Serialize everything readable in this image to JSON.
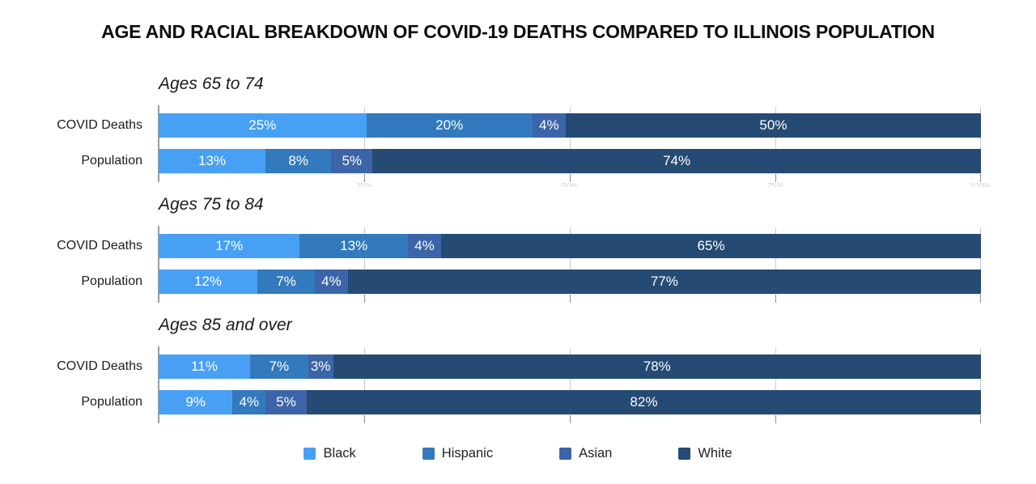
{
  "title": "AGE AND RACIAL BREAKDOWN OF COVID-19 DEATHS COMPARED TO ILLINOIS POPULATION",
  "colors": {
    "black": "#47A0F4",
    "hispanic": "#3379BD",
    "asian": "#3C64A8",
    "white": "#254A73"
  },
  "axis": {
    "tick_labels": [
      "25%",
      "50%",
      "75%",
      "100%"
    ],
    "tick_positions": [
      25,
      50,
      75,
      100
    ]
  },
  "legend": {
    "items": [
      {
        "label": "Black",
        "color_key": "black"
      },
      {
        "label": "Hispanic",
        "color_key": "hispanic"
      },
      {
        "label": "Asian",
        "color_key": "asian"
      },
      {
        "label": "White",
        "color_key": "white"
      }
    ]
  },
  "chart_data": {
    "type": "bar",
    "stacked": true,
    "orientation": "horizontal",
    "title": "AGE AND RACIAL BREAKDOWN OF COVID-19 DEATHS COMPARED TO ILLINOIS POPULATION",
    "series_labels": [
      "Black",
      "Hispanic",
      "Asian",
      "White"
    ],
    "series_keys": [
      "black",
      "hispanic",
      "asian",
      "white"
    ],
    "xlim": [
      0,
      100
    ],
    "gridlines": [
      25,
      50,
      75,
      100
    ],
    "legend_position": "bottom",
    "value_suffix": "%",
    "groups": [
      {
        "heading": "Ages 65 to 74",
        "rows": [
          {
            "label": "COVID Deaths",
            "values": [
              25,
              20,
              4,
              50
            ]
          },
          {
            "label": "Population",
            "values": [
              13,
              8,
              5,
              74
            ]
          }
        ]
      },
      {
        "heading": "Ages 75 to 84",
        "rows": [
          {
            "label": "COVID Deaths",
            "values": [
              17,
              13,
              4,
              65
            ]
          },
          {
            "label": "Population",
            "values": [
              12,
              7,
              4,
              77
            ]
          }
        ]
      },
      {
        "heading": "Ages 85 and over",
        "rows": [
          {
            "label": "COVID Deaths",
            "values": [
              11,
              7,
              3,
              78
            ]
          },
          {
            "label": "Population",
            "values": [
              9,
              4,
              5,
              82
            ]
          }
        ]
      }
    ]
  }
}
